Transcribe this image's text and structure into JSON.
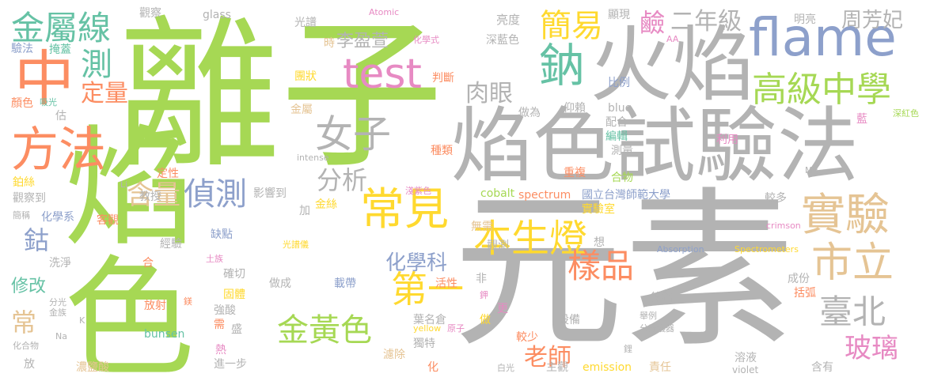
{
  "words": [
    {
      "text": "離子",
      "color": "#a6d854"
    },
    {
      "text": "焰色",
      "color": "#a6d854"
    },
    {
      "text": "元素",
      "color": "#b3b3b3"
    },
    {
      "text": "火焰",
      "color": "#b3b3b3"
    },
    {
      "text": "焰色試驗法",
      "color": "#b3b3b3"
    },
    {
      "text": "flame",
      "color": "#8da0cb"
    },
    {
      "text": "test",
      "color": "#e78ac3"
    },
    {
      "text": "中",
      "color": "#fc8d62"
    },
    {
      "text": "方法",
      "color": "#fc8d62"
    },
    {
      "text": "金屬線",
      "color": "#66c2a5"
    },
    {
      "text": "測",
      "color": "#66c2a5"
    },
    {
      "text": "定量",
      "color": "#fc8d62"
    },
    {
      "text": "鈉",
      "color": "#66c2a5"
    },
    {
      "text": "簡易",
      "color": "#ffd92f"
    },
    {
      "text": "二年級",
      "color": "#b3b3b3"
    },
    {
      "text": "周芳妃",
      "color": "#b3b3b3"
    },
    {
      "text": "鹼",
      "color": "#e78ac3"
    },
    {
      "text": "肉眼",
      "color": "#b3b3b3"
    },
    {
      "text": "高級中學",
      "color": "#a6d854"
    },
    {
      "text": "李盈萱",
      "color": "#b3b3b3"
    },
    {
      "text": "女子",
      "color": "#b3b3b3"
    },
    {
      "text": "分析",
      "color": "#b3b3b3"
    },
    {
      "text": "含量",
      "color": "#e5c494"
    },
    {
      "text": "偵測",
      "color": "#8da0cb"
    },
    {
      "text": "常見",
      "color": "#ffd92f"
    },
    {
      "text": "實驗",
      "color": "#e5c494"
    },
    {
      "text": "本生燈",
      "color": "#ffd92f"
    },
    {
      "text": "市立",
      "color": "#e5c494"
    },
    {
      "text": "樣品",
      "color": "#fc8d62"
    },
    {
      "text": "化學科",
      "color": "#8da0cb"
    },
    {
      "text": "第一",
      "color": "#ffd92f"
    },
    {
      "text": "臺北",
      "color": "#b3b3b3"
    },
    {
      "text": "玻璃",
      "color": "#e78ac3"
    },
    {
      "text": "金黃色",
      "color": "#a6d854"
    },
    {
      "text": "老師",
      "color": "#fc8d62"
    },
    {
      "text": "鈷",
      "color": "#8da0cb"
    },
    {
      "text": "修改",
      "color": "#66c2a5"
    },
    {
      "text": "常",
      "color": "#e5c494"
    },
    {
      "text": "觀察",
      "color": "#b3b3b3"
    },
    {
      "text": "glass",
      "color": "#b3b3b3"
    },
    {
      "text": "光譜",
      "color": "#b3b3b3"
    },
    {
      "text": "Atomic",
      "color": "#e78ac3"
    },
    {
      "text": "亮度",
      "color": "#b3b3b3"
    },
    {
      "text": "顯現",
      "color": "#b3b3b3"
    },
    {
      "text": "明亮",
      "color": "#b3b3b3"
    },
    {
      "text": "深藍色",
      "color": "#b3b3b3"
    },
    {
      "text": "化學式",
      "color": "#e78ac3"
    },
    {
      "text": "時",
      "color": "#e5c494"
    },
    {
      "text": "驗法",
      "color": "#8da0cb"
    },
    {
      "text": "掩蓋",
      "color": "#66c2a5"
    },
    {
      "text": "團狀",
      "color": "#ffd92f"
    },
    {
      "text": "判斷",
      "color": "#fc8d62"
    },
    {
      "text": "比例",
      "color": "#8da0cb"
    },
    {
      "text": "顏色",
      "color": "#fc8d62"
    },
    {
      "text": "吸光",
      "color": "#66c2a5"
    },
    {
      "text": "估",
      "color": "#b3b3b3"
    },
    {
      "text": "金屬",
      "color": "#e5c494"
    },
    {
      "text": "做為",
      "color": "#b3b3b3"
    },
    {
      "text": "仰賴",
      "color": "#b3b3b3"
    },
    {
      "text": "blue",
      "color": "#b3b3b3"
    },
    {
      "text": "配合",
      "color": "#b3b3b3"
    },
    {
      "text": "藍",
      "color": "#e78ac3"
    },
    {
      "text": "深紅色",
      "color": "#a6d854"
    },
    {
      "text": "編輯",
      "color": "#66c2a5"
    },
    {
      "text": "種類",
      "color": "#fc8d62"
    },
    {
      "text": "測量",
      "color": "#b3b3b3"
    },
    {
      "text": "利用",
      "color": "#e78ac3"
    },
    {
      "text": "intense",
      "color": "#b3b3b3"
    },
    {
      "text": "定性",
      "color": "#fc8d62"
    },
    {
      "text": "鉑絲",
      "color": "#ffd92f"
    },
    {
      "text": "觀察到",
      "color": "#b3b3b3"
    },
    {
      "text": "Li",
      "color": "#b3b3b3"
    },
    {
      "text": "教授",
      "color": "#b3b3b3"
    },
    {
      "text": "影響到",
      "color": "#b3b3b3"
    },
    {
      "text": "淺紫色",
      "color": "#e78ac3"
    },
    {
      "text": "重複",
      "color": "#fc8d62"
    },
    {
      "text": "合物",
      "color": "#a6d854"
    },
    {
      "text": "Mg",
      "color": "#b3b3b3"
    },
    {
      "text": "cobalt",
      "color": "#a6d854"
    },
    {
      "text": "國立台灣師範大學",
      "color": "#8da0cb"
    },
    {
      "text": "較多",
      "color": "#b3b3b3"
    },
    {
      "text": "spectrum",
      "color": "#fc8d62"
    },
    {
      "text": "實驗室",
      "color": "#ffd92f"
    },
    {
      "text": "加",
      "color": "#b3b3b3"
    },
    {
      "text": "金絲",
      "color": "#ffd92f"
    },
    {
      "text": "簡稱",
      "color": "#b3b3b3"
    },
    {
      "text": "化學系",
      "color": "#8da0cb"
    },
    {
      "text": "客觀",
      "color": "#fc8d62"
    },
    {
      "text": "無需",
      "color": "#e5c494"
    },
    {
      "text": "想",
      "color": "#b3b3b3"
    },
    {
      "text": "crimson",
      "color": "#e78ac3"
    },
    {
      "text": "經驗",
      "color": "#b3b3b3"
    },
    {
      "text": "缺點",
      "color": "#8da0cb"
    },
    {
      "text": "光譜儀",
      "color": "#ffd92f"
    },
    {
      "text": "觀測",
      "color": "#b3b3b3"
    },
    {
      "text": "Absorption",
      "color": "#8da0cb"
    },
    {
      "text": "Spectrometers",
      "color": "#ffd92f"
    },
    {
      "text": "洗淨",
      "color": "#b3b3b3"
    },
    {
      "text": "土族",
      "color": "#e78ac3"
    },
    {
      "text": "合",
      "color": "#fc8d62"
    },
    {
      "text": "確切",
      "color": "#b3b3b3"
    },
    {
      "text": "做成",
      "color": "#b3b3b3"
    },
    {
      "text": "載帶",
      "color": "#8da0cb"
    },
    {
      "text": "活性",
      "color": "#fc8d62"
    },
    {
      "text": "非",
      "color": "#b3b3b3"
    },
    {
      "text": "成份",
      "color": "#b3b3b3"
    },
    {
      "text": "分光",
      "color": "#b3b3b3"
    },
    {
      "text": "金族",
      "color": "#b3b3b3"
    },
    {
      "text": "放射",
      "color": "#fc8d62"
    },
    {
      "text": "鎂",
      "color": "#fc8d62"
    },
    {
      "text": "固體",
      "color": "#ffd92f"
    },
    {
      "text": "強酸",
      "color": "#b3b3b3"
    },
    {
      "text": "鉀",
      "color": "#e78ac3"
    },
    {
      "text": "鎳鉻",
      "color": "#b3b3b3"
    },
    {
      "text": "括弧",
      "color": "#fc8d62"
    },
    {
      "text": "更",
      "color": "#e78ac3"
    },
    {
      "text": "做",
      "color": "#ffd92f"
    },
    {
      "text": "葉名倉",
      "color": "#b3b3b3"
    },
    {
      "text": "設備",
      "color": "#b3b3b3"
    },
    {
      "text": "舉例",
      "color": "#b3b3b3"
    },
    {
      "text": "分光儀器",
      "color": "#b3b3b3"
    },
    {
      "text": "需",
      "color": "#fc8d62"
    },
    {
      "text": "盛",
      "color": "#b3b3b3"
    },
    {
      "text": "yellow",
      "color": "#ffd92f"
    },
    {
      "text": "原子",
      "color": "#e78ac3"
    },
    {
      "text": "鋰",
      "color": "#b3b3b3"
    },
    {
      "text": "化合物",
      "color": "#b3b3b3"
    },
    {
      "text": "bunsen",
      "color": "#66c2a5"
    },
    {
      "text": "Na",
      "color": "#b3b3b3"
    },
    {
      "text": "獨特",
      "color": "#b3b3b3"
    },
    {
      "text": "較少",
      "color": "#fc8d62"
    },
    {
      "text": "溶液",
      "color": "#b3b3b3"
    },
    {
      "text": "熱",
      "color": "#e78ac3"
    },
    {
      "text": "放",
      "color": "#b3b3b3"
    },
    {
      "text": "進一步",
      "color": "#b3b3b3"
    },
    {
      "text": "濃鹽酸",
      "color": "#e5c494"
    },
    {
      "text": "化",
      "color": "#fc8d62"
    },
    {
      "text": "濾除",
      "color": "#e5c494"
    },
    {
      "text": "白光",
      "color": "#b3b3b3"
    },
    {
      "text": "主觀",
      "color": "#b3b3b3"
    },
    {
      "text": "emission",
      "color": "#ffd92f"
    },
    {
      "text": "責任",
      "color": "#e5c494"
    },
    {
      "text": "violet",
      "color": "#b3b3b3"
    },
    {
      "text": "含有",
      "color": "#b3b3b3"
    },
    {
      "text": "AA",
      "color": "#e78ac3"
    },
    {
      "text": "K",
      "color": "#b3b3b3"
    }
  ]
}
